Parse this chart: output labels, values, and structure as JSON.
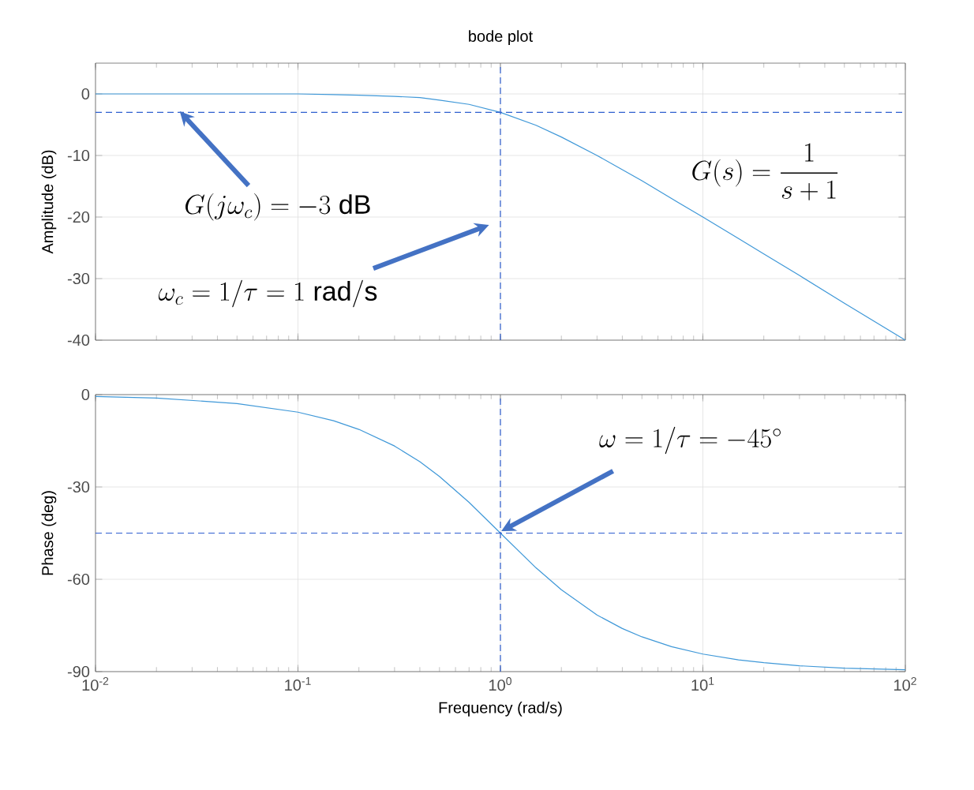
{
  "chart_data": [
    {
      "type": "line",
      "title": "bode plot",
      "ylabel": "Amplitude (dB)",
      "log": "x",
      "grid": true,
      "tick_labels": "y",
      "x": [
        0.01,
        0.02,
        0.05,
        0.1,
        0.15,
        0.2,
        0.3,
        0.4,
        0.5,
        0.7,
        1,
        1.5,
        2,
        3,
        4,
        5,
        7,
        10,
        15,
        20,
        30,
        50,
        100
      ],
      "values": [
        0,
        0,
        0,
        0,
        -0.1,
        -0.2,
        -0.4,
        -0.6,
        -1,
        -1.7,
        -3,
        -5.1,
        -7,
        -10,
        -12.3,
        -14.1,
        -17,
        -20,
        -23.5,
        -26,
        -29.5,
        -34,
        -40
      ],
      "color": "#3f98d8",
      "xlim": [
        0.01,
        100
      ],
      "ylim": [
        -40,
        5
      ],
      "xticks": [
        {
          "value": 0.01,
          "label": null
        },
        {
          "value": 0.1,
          "label": null
        },
        {
          "value": 1,
          "label": null
        },
        {
          "value": 10,
          "label": null
        },
        {
          "value": 100,
          "label": null
        }
      ],
      "yticks": [
        -40,
        -30,
        -20,
        -10,
        0
      ],
      "ref_lines": [
        {
          "axis": "y",
          "value": -3,
          "color": "#2f5fd0",
          "line_style": "dashed"
        },
        {
          "axis": "x",
          "value": 1,
          "color": "#2f5fd0",
          "line_style": "dashed"
        }
      ],
      "annotations": [
        "G(j\\omega_c) = -3\\ \\mathrm{dB}",
        "\\omega_c = 1/\\tau = 1\\ \\mathrm{rad/s}",
        "G(s) = \\frac{1}{s+1}"
      ]
    },
    {
      "type": "line",
      "ylabel": "Phase (deg)",
      "xlabel": "Frequency  (rad/s)",
      "log": "x",
      "grid": true,
      "x": [
        0.01,
        0.02,
        0.05,
        0.1,
        0.15,
        0.2,
        0.3,
        0.4,
        0.5,
        0.7,
        1,
        1.5,
        2,
        3,
        4,
        5,
        7,
        10,
        15,
        20,
        30,
        50,
        100
      ],
      "values": [
        -0.6,
        -1.1,
        -2.9,
        -5.7,
        -8.5,
        -11.3,
        -16.7,
        -21.8,
        -26.6,
        -35,
        -45,
        -56.3,
        -63.4,
        -71.6,
        -76,
        -78.7,
        -81.9,
        -84.3,
        -86.2,
        -87.1,
        -88.1,
        -88.9,
        -89.4
      ],
      "color": "#3f98d8",
      "xlim": [
        0.01,
        100
      ],
      "ylim": [
        -90,
        0
      ],
      "xticks": [
        {
          "value": 0.01,
          "label": "10$^{-2}$"
        },
        {
          "value": 0.1,
          "label": "10$^{-1}$"
        },
        {
          "value": 1,
          "label": "10$^{0}$"
        },
        {
          "value": 10,
          "label": "10$^{1}$"
        },
        {
          "value": 100,
          "label": "10$^{2}$"
        }
      ],
      "yticks": [
        -90,
        -60,
        -30,
        0
      ],
      "ref_lines": [
        {
          "axis": "y",
          "value": -45,
          "color": "#2f5fd0",
          "line_style": "dashed"
        },
        {
          "axis": "x",
          "value": 1,
          "color": "#2f5fd0",
          "line_style": "dashed"
        }
      ],
      "annotations": [
        "\\omega = 1/\\tau = -45^\\circ"
      ]
    }
  ]
}
